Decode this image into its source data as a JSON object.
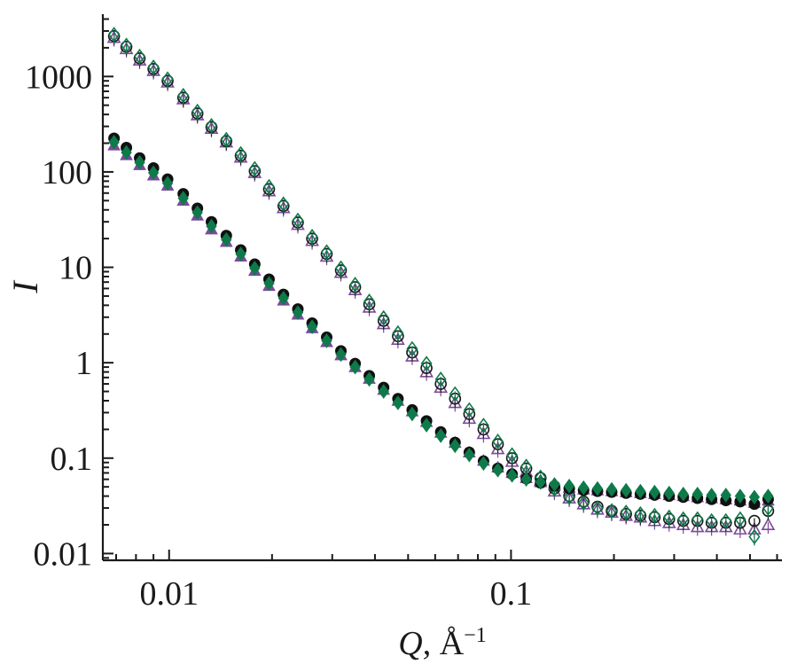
{
  "chart_data": {
    "type": "scatter",
    "title": "",
    "xlabel": "Q",
    "xlabel_unit": ", Å",
    "xlabel_unit_exponent": "−1",
    "ylabel": "I",
    "xscale": "log",
    "yscale": "log",
    "xlim": [
      0.0064,
      0.62
    ],
    "ylim": [
      0.0085,
      4500
    ],
    "x_ticks": [
      {
        "value": 0.01,
        "label": "0.01"
      },
      {
        "value": 0.1,
        "label": "0.1"
      }
    ],
    "y_ticks": [
      {
        "value": 0.01,
        "label": "0.01"
      },
      {
        "value": 0.1,
        "label": "0.1"
      },
      {
        "value": 1,
        "label": "1"
      },
      {
        "value": 10,
        "label": "10"
      },
      {
        "value": 100,
        "label": "100"
      },
      {
        "value": 1000,
        "label": "1000"
      }
    ],
    "grid": false,
    "legend": "none",
    "series": [
      {
        "marker": "triangle-open",
        "color": "#7b4a9a",
        "group": "upper",
        "q": [
          0.0069,
          0.0075,
          0.0082,
          0.009,
          0.0099,
          0.011,
          0.0121,
          0.0133,
          0.0147,
          0.0162,
          0.0178,
          0.0196,
          0.0216,
          0.0238,
          0.0262,
          0.0289,
          0.0318,
          0.035,
          0.0385,
          0.0424,
          0.0467,
          0.0514,
          0.0566,
          0.0623,
          0.0686,
          0.0755,
          0.0831,
          0.0915,
          0.1007,
          0.1108,
          0.122,
          0.134,
          0.148,
          0.163,
          0.179,
          0.197,
          0.217,
          0.239,
          0.263,
          0.29,
          0.319,
          0.351,
          0.386,
          0.425,
          0.468,
          0.515,
          0.565
        ],
        "i": [
          2550,
          1950,
          1480,
          1150,
          870,
          580,
          395,
          285,
          205,
          142,
          98,
          63,
          42,
          28,
          19,
          13,
          8.8,
          5.8,
          3.8,
          2.55,
          1.75,
          1.17,
          0.8,
          0.55,
          0.38,
          0.26,
          0.18,
          0.125,
          0.092,
          0.072,
          0.058,
          0.045,
          0.038,
          0.033,
          0.029,
          0.027,
          0.025,
          0.024,
          0.022,
          0.021,
          0.02,
          0.019,
          0.019,
          0.019,
          0.018,
          0.018,
          0.02
        ]
      },
      {
        "marker": "circle-open",
        "color": "#1a1a1a",
        "group": "upper",
        "q": [
          0.0069,
          0.0075,
          0.0082,
          0.009,
          0.0099,
          0.011,
          0.0121,
          0.0133,
          0.0147,
          0.0162,
          0.0178,
          0.0196,
          0.0216,
          0.0238,
          0.0262,
          0.0289,
          0.0318,
          0.035,
          0.0385,
          0.0424,
          0.0467,
          0.0514,
          0.0566,
          0.0623,
          0.0686,
          0.0755,
          0.0831,
          0.0915,
          0.1007,
          0.1108,
          0.122,
          0.134,
          0.148,
          0.163,
          0.179,
          0.197,
          0.217,
          0.239,
          0.263,
          0.29,
          0.319,
          0.351,
          0.386,
          0.425,
          0.468,
          0.515,
          0.565
        ],
        "i": [
          2650,
          2050,
          1550,
          1200,
          900,
          600,
          410,
          295,
          210,
          148,
          102,
          66,
          44,
          29.5,
          20,
          13.8,
          9.3,
          6.2,
          4.1,
          2.75,
          1.9,
          1.28,
          0.88,
          0.6,
          0.42,
          0.29,
          0.2,
          0.14,
          0.1,
          0.078,
          0.062,
          0.048,
          0.04,
          0.035,
          0.031,
          0.028,
          0.026,
          0.025,
          0.024,
          0.023,
          0.022,
          0.022,
          0.021,
          0.021,
          0.021,
          0.022,
          0.028
        ]
      },
      {
        "marker": "diamond-open",
        "color": "#0e7a4a",
        "group": "upper",
        "q": [
          0.0069,
          0.0075,
          0.0082,
          0.009,
          0.0099,
          0.011,
          0.0121,
          0.0133,
          0.0147,
          0.0162,
          0.0178,
          0.0196,
          0.0216,
          0.0238,
          0.0262,
          0.0289,
          0.0318,
          0.035,
          0.0385,
          0.0424,
          0.0467,
          0.0514,
          0.0566,
          0.0623,
          0.0686,
          0.0755,
          0.0831,
          0.0915,
          0.1007,
          0.1108,
          0.122,
          0.134,
          0.148,
          0.163,
          0.179,
          0.197,
          0.217,
          0.239,
          0.263,
          0.29,
          0.319,
          0.351,
          0.386,
          0.425,
          0.468,
          0.515,
          0.565
        ],
        "i": [
          2750,
          2120,
          1620,
          1250,
          940,
          630,
          430,
          305,
          218,
          155,
          108,
          70,
          46,
          31,
          21,
          14.5,
          9.8,
          6.6,
          4.4,
          2.95,
          2.05,
          1.4,
          0.98,
          0.67,
          0.47,
          0.32,
          0.22,
          0.15,
          0.108,
          0.082,
          0.063,
          0.048,
          0.039,
          0.034,
          0.03,
          0.028,
          0.027,
          0.026,
          0.025,
          0.024,
          0.023,
          0.023,
          0.022,
          0.022,
          0.023,
          0.015,
          0.03
        ]
      },
      {
        "marker": "triangle-filled",
        "color": "#7b4a9a",
        "group": "lower",
        "q": [
          0.0069,
          0.0075,
          0.0082,
          0.009,
          0.0099,
          0.011,
          0.0121,
          0.0133,
          0.0147,
          0.0162,
          0.0178,
          0.0196,
          0.0216,
          0.0238,
          0.0262,
          0.0289,
          0.0318,
          0.035,
          0.0385,
          0.0424,
          0.0467,
          0.0514,
          0.0566,
          0.0623,
          0.0686,
          0.0755,
          0.0831,
          0.0915,
          0.1007,
          0.1108,
          0.122,
          0.134,
          0.148,
          0.163,
          0.179,
          0.197,
          0.217,
          0.239,
          0.263,
          0.29,
          0.319,
          0.351,
          0.386,
          0.425,
          0.468,
          0.515,
          0.565
        ],
        "i": [
          190,
          150,
          118,
          92,
          72,
          50,
          35,
          25,
          18.5,
          13,
          9.2,
          6.4,
          4.5,
          3.2,
          2.3,
          1.65,
          1.2,
          0.9,
          0.68,
          0.52,
          0.4,
          0.31,
          0.24,
          0.185,
          0.145,
          0.115,
          0.094,
          0.08,
          0.07,
          0.062,
          0.056,
          0.052,
          0.049,
          0.047,
          0.046,
          0.045,
          0.044,
          0.043,
          0.042,
          0.041,
          0.04,
          0.039,
          0.038,
          0.037,
          0.036,
          0.034,
          0.036
        ]
      },
      {
        "marker": "circle-filled",
        "color": "#111111",
        "group": "lower",
        "q": [
          0.0069,
          0.0075,
          0.0082,
          0.009,
          0.0099,
          0.011,
          0.0121,
          0.0133,
          0.0147,
          0.0162,
          0.0178,
          0.0196,
          0.0216,
          0.0238,
          0.0262,
          0.0289,
          0.0318,
          0.035,
          0.0385,
          0.0424,
          0.0467,
          0.0514,
          0.0566,
          0.0623,
          0.0686,
          0.0755,
          0.0831,
          0.0915,
          0.1007,
          0.1108,
          0.122,
          0.134,
          0.148,
          0.163,
          0.179,
          0.197,
          0.217,
          0.239,
          0.263,
          0.29,
          0.319,
          0.351,
          0.386,
          0.425,
          0.468,
          0.515,
          0.565
        ],
        "i": [
          225,
          180,
          140,
          110,
          84,
          59,
          41.5,
          30,
          21.5,
          15.2,
          10.8,
          7.5,
          5.2,
          3.65,
          2.6,
          1.85,
          1.33,
          0.98,
          0.73,
          0.55,
          0.42,
          0.32,
          0.245,
          0.188,
          0.146,
          0.115,
          0.093,
          0.078,
          0.068,
          0.061,
          0.055,
          0.051,
          0.048,
          0.046,
          0.045,
          0.044,
          0.043,
          0.042,
          0.041,
          0.04,
          0.039,
          0.038,
          0.037,
          0.036,
          0.035,
          0.033,
          0.037
        ]
      },
      {
        "marker": "diamond-filled",
        "color": "#0e7a4a",
        "group": "lower",
        "q": [
          0.0069,
          0.0075,
          0.0082,
          0.009,
          0.0099,
          0.011,
          0.0121,
          0.0133,
          0.0147,
          0.0162,
          0.0178,
          0.0196,
          0.0216,
          0.0238,
          0.0262,
          0.0289,
          0.0318,
          0.035,
          0.0385,
          0.0424,
          0.0467,
          0.0514,
          0.0566,
          0.0623,
          0.0686,
          0.0755,
          0.0831,
          0.0915,
          0.1007,
          0.1108,
          0.122,
          0.134,
          0.148,
          0.163,
          0.179,
          0.197,
          0.217,
          0.239,
          0.263,
          0.29,
          0.319,
          0.351,
          0.386,
          0.425,
          0.468,
          0.515,
          0.565
        ],
        "i": [
          205,
          160,
          126,
          98,
          76,
          53,
          37.5,
          27,
          19.5,
          13.8,
          9.8,
          6.8,
          4.75,
          3.35,
          2.38,
          1.7,
          1.22,
          0.9,
          0.67,
          0.5,
          0.38,
          0.29,
          0.222,
          0.172,
          0.135,
          0.108,
          0.088,
          0.075,
          0.066,
          0.06,
          0.056,
          0.053,
          0.051,
          0.049,
          0.048,
          0.047,
          0.046,
          0.045,
          0.044,
          0.043,
          0.042,
          0.042,
          0.041,
          0.041,
          0.04,
          0.039,
          0.04
        ]
      }
    ]
  }
}
